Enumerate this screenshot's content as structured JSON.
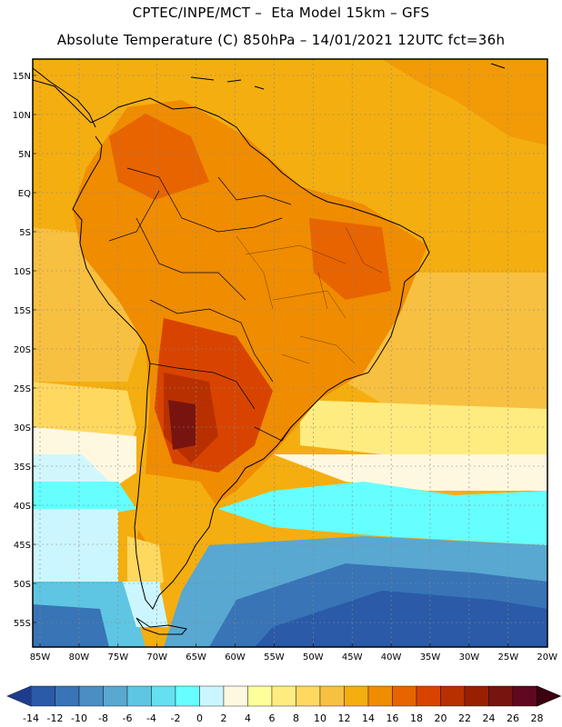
{
  "header": {
    "title_line1": "CPTEC/INPE/MCT –  Eta Model 15km – GFS",
    "title_line2": "Absolute Temperature (C) 850hPa – 14/01/2021 12UTC fct=36h"
  },
  "map": {
    "lat_labels": [
      "15N",
      "10N",
      "5N",
      "EQ",
      "5S",
      "10S",
      "15S",
      "20S",
      "25S",
      "30S",
      "35S",
      "40S",
      "45S",
      "50S",
      "55S"
    ],
    "lon_labels": [
      "85W",
      "80W",
      "75W",
      "70W",
      "65W",
      "60W",
      "55W",
      "50W",
      "45W",
      "40W",
      "35W",
      "30W",
      "25W",
      "20W"
    ]
  },
  "colorbar": {
    "labels": [
      "-14",
      "-12",
      "-10",
      "-8",
      "-6",
      "-4",
      "-2",
      "0",
      "2",
      "4",
      "6",
      "8",
      "10",
      "12",
      "14",
      "16",
      "18",
      "20",
      "22",
      "24",
      "26",
      "28"
    ],
    "colors": [
      "#1e3c8c",
      "#2a5aa8",
      "#3874b6",
      "#4a8ec4",
      "#58a8d2",
      "#5ec6e2",
      "#64e0f0",
      "#66ffff",
      "#ccf6ff",
      "#fff8e0",
      "#ffff99",
      "#ffec80",
      "#ffd860",
      "#f8c040",
      "#f4ae10",
      "#f08c00",
      "#e86400",
      "#d84400",
      "#b83000",
      "#982000",
      "#781410",
      "#600820",
      "#3c0010"
    ]
  }
}
